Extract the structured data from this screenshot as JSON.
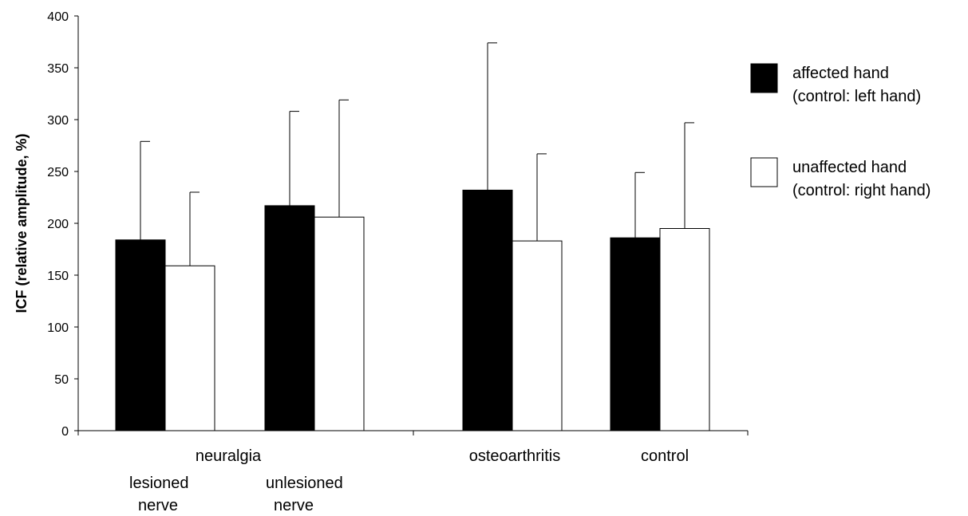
{
  "chart_data": {
    "type": "bar",
    "title": "",
    "xlabel": "",
    "ylabel": "ICF (relative amplitude, %)",
    "ylim": [
      0,
      400
    ],
    "yticks": [
      0,
      50,
      100,
      150,
      200,
      250,
      300,
      350,
      400
    ],
    "grid": false,
    "legend_position": "right",
    "group_labels": [
      "neuralgia",
      "osteoarthritis",
      "control"
    ],
    "subgroup_labels": [
      {
        "group": "neuralgia",
        "line1": "lesioned",
        "line2": "nerve"
      },
      {
        "group": "neuralgia",
        "line1": "unlesioned",
        "line2": "nerve"
      }
    ],
    "categories": [
      "neuralgia lesioned nerve",
      "neuralgia unlesioned nerve",
      "osteoarthritis",
      "control"
    ],
    "series": [
      {
        "name": "affected hand (control: left hand)",
        "legend_lines": [
          "affected hand",
          "(control: left hand)"
        ],
        "color": "#000000",
        "values": [
          184,
          217,
          232,
          186
        ],
        "error_upper": [
          279,
          308,
          374,
          249
        ]
      },
      {
        "name": "unaffected hand (control: right hand)",
        "legend_lines": [
          "unaffected hand",
          "(control: right hand)"
        ],
        "color": "#ffffff",
        "values": [
          159,
          206,
          183,
          195
        ],
        "error_upper": [
          230,
          319,
          267,
          297
        ]
      }
    ]
  }
}
